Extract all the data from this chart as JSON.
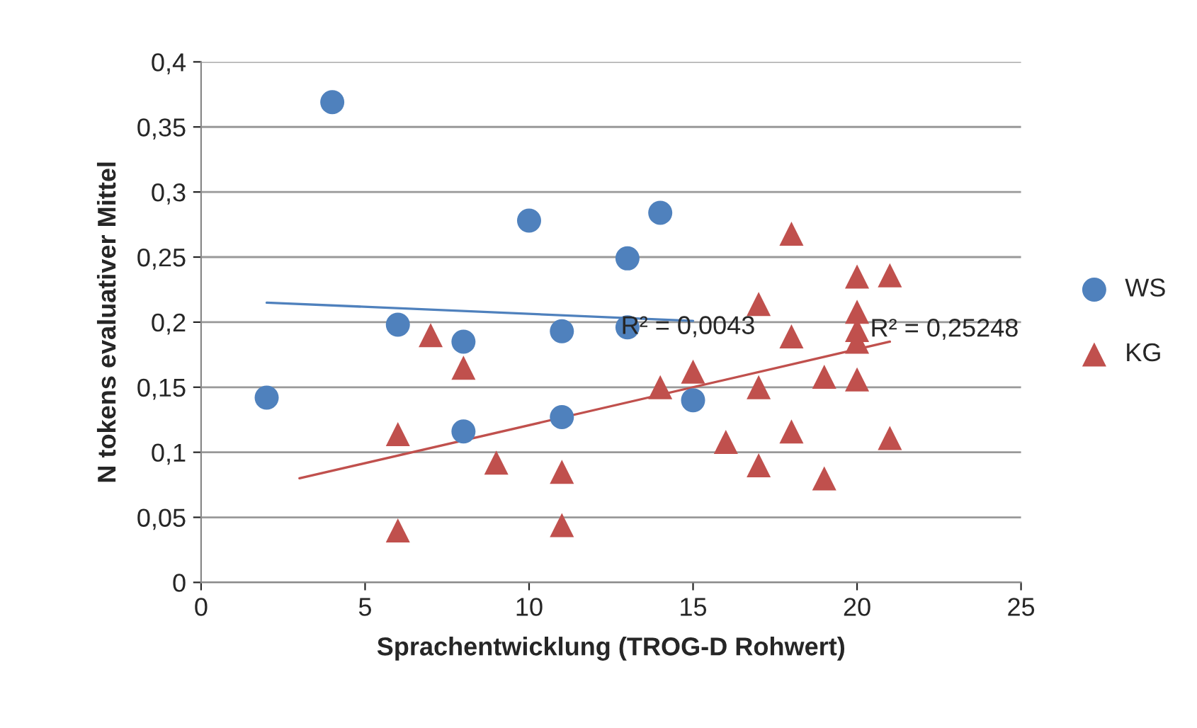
{
  "chart_data": {
    "type": "scatter",
    "xlabel": "Sprachentwicklung (TROG-D Rohwert)",
    "ylabel": "N tokens evaluativer Mittel",
    "xlim": [
      0,
      25
    ],
    "xticks": [
      0,
      5,
      10,
      15,
      20,
      25
    ],
    "ylim": [
      0,
      0.4
    ],
    "yticks": [
      {
        "value": 0,
        "label": "0"
      },
      {
        "value": 0.05,
        "label": "0,05"
      },
      {
        "value": 0.1,
        "label": "0,1"
      },
      {
        "value": 0.15,
        "label": "0,15"
      },
      {
        "value": 0.2,
        "label": "0,2"
      },
      {
        "value": 0.25,
        "label": "0,25"
      },
      {
        "value": 0.3,
        "label": "0,3"
      },
      {
        "value": 0.35,
        "label": "0,35"
      },
      {
        "value": 0.4,
        "label": "0,4"
      }
    ],
    "grid": "y",
    "legend": "right",
    "series": [
      {
        "name": "WS",
        "color": "#4f81bd",
        "marker": "circle",
        "x": [
          2,
          4,
          6,
          8,
          8,
          10,
          11,
          11,
          13,
          13,
          14,
          15
        ],
        "values": [
          0.142,
          0.369,
          0.198,
          0.185,
          0.116,
          0.278,
          0.193,
          0.127,
          0.249,
          0.196,
          0.284,
          0.14
        ]
      },
      {
        "name": "KG",
        "color": "#c0504d",
        "marker": "triangle",
        "x": [
          6,
          6,
          7,
          8,
          9,
          11,
          11,
          14,
          15,
          16,
          17,
          17,
          17,
          18,
          18,
          18,
          19,
          19,
          20,
          20,
          20,
          20,
          20,
          21,
          21
        ],
        "values": [
          0.114,
          0.04,
          0.19,
          0.165,
          0.092,
          0.085,
          0.044,
          0.15,
          0.162,
          0.108,
          0.214,
          0.15,
          0.09,
          0.268,
          0.189,
          0.116,
          0.158,
          0.08,
          0.235,
          0.208,
          0.194,
          0.185,
          0.156,
          0.236,
          0.111
        ]
      },
      {
        "type": "line",
        "color": "#4f81bd",
        "x": [
          2,
          15
        ],
        "values": [
          0.215,
          0.201
        ]
      },
      {
        "type": "line",
        "color": "#c0504d",
        "x": [
          3,
          21
        ],
        "values": [
          0.08,
          0.185
        ]
      }
    ],
    "annotations": [
      {
        "text": "R² = 0,0043",
        "x": 12.8,
        "y": 0.196
      },
      {
        "text": "R² = 0,25248",
        "x": 20.4,
        "y": 0.194
      }
    ]
  }
}
